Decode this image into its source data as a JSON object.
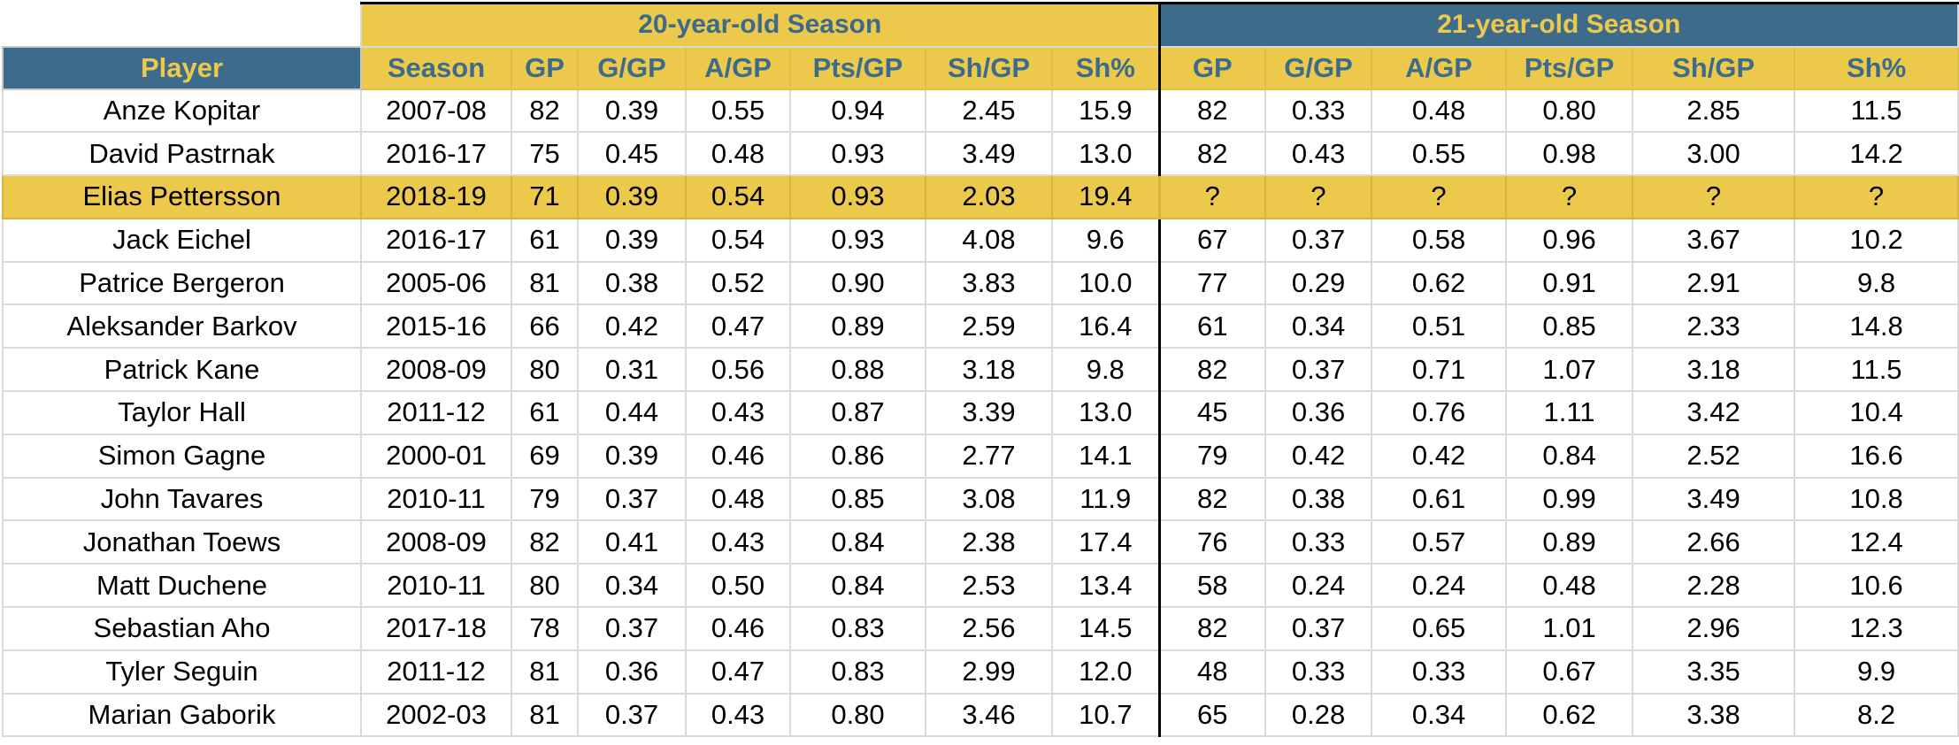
{
  "groups": {
    "season20": "20-year-old Season",
    "season21": "21-year-old Season"
  },
  "headers": {
    "player": "Player",
    "season": "Season",
    "gp20": "GP",
    "g20": "G/GP",
    "a20": "A/GP",
    "pts20": "Pts/GP",
    "sh20": "Sh/GP",
    "shp20": "Sh%",
    "gp21": "GP",
    "g21": "G/GP",
    "a21": "A/GP",
    "pts21": "Pts/GP",
    "sh21": "Sh/GP",
    "shp21": "Sh%"
  },
  "rows": [
    [
      "Anze Kopitar",
      "2007-08",
      "82",
      "0.39",
      "0.55",
      "0.94",
      "2.45",
      "15.9",
      "82",
      "0.33",
      "0.48",
      "0.80",
      "2.85",
      "11.5"
    ],
    [
      "David Pastrnak",
      "2016-17",
      "75",
      "0.45",
      "0.48",
      "0.93",
      "3.49",
      "13.0",
      "82",
      "0.43",
      "0.55",
      "0.98",
      "3.00",
      "14.2"
    ],
    [
      "Elias Pettersson",
      "2018-19",
      "71",
      "0.39",
      "0.54",
      "0.93",
      "2.03",
      "19.4",
      "?",
      "?",
      "?",
      "?",
      "?",
      "?"
    ],
    [
      "Jack Eichel",
      "2016-17",
      "61",
      "0.39",
      "0.54",
      "0.93",
      "4.08",
      "9.6",
      "67",
      "0.37",
      "0.58",
      "0.96",
      "3.67",
      "10.2"
    ],
    [
      "Patrice Bergeron",
      "2005-06",
      "81",
      "0.38",
      "0.52",
      "0.90",
      "3.83",
      "10.0",
      "77",
      "0.29",
      "0.62",
      "0.91",
      "2.91",
      "9.8"
    ],
    [
      "Aleksander Barkov",
      "2015-16",
      "66",
      "0.42",
      "0.47",
      "0.89",
      "2.59",
      "16.4",
      "61",
      "0.34",
      "0.51",
      "0.85",
      "2.33",
      "14.8"
    ],
    [
      "Patrick Kane",
      "2008-09",
      "80",
      "0.31",
      "0.56",
      "0.88",
      "3.18",
      "9.8",
      "82",
      "0.37",
      "0.71",
      "1.07",
      "3.18",
      "11.5"
    ],
    [
      "Taylor Hall",
      "2011-12",
      "61",
      "0.44",
      "0.43",
      "0.87",
      "3.39",
      "13.0",
      "45",
      "0.36",
      "0.76",
      "1.11",
      "3.42",
      "10.4"
    ],
    [
      "Simon Gagne",
      "2000-01",
      "69",
      "0.39",
      "0.46",
      "0.86",
      "2.77",
      "14.1",
      "79",
      "0.42",
      "0.42",
      "0.84",
      "2.52",
      "16.6"
    ],
    [
      "John Tavares",
      "2010-11",
      "79",
      "0.37",
      "0.48",
      "0.85",
      "3.08",
      "11.9",
      "82",
      "0.38",
      "0.61",
      "0.99",
      "3.49",
      "10.8"
    ],
    [
      "Jonathan Toews",
      "2008-09",
      "82",
      "0.41",
      "0.43",
      "0.84",
      "2.38",
      "17.4",
      "76",
      "0.33",
      "0.57",
      "0.89",
      "2.66",
      "12.4"
    ],
    [
      "Matt Duchene",
      "2010-11",
      "80",
      "0.34",
      "0.50",
      "0.84",
      "2.53",
      "13.4",
      "58",
      "0.24",
      "0.24",
      "0.48",
      "2.28",
      "10.6"
    ],
    [
      "Sebastian Aho",
      "2017-18",
      "78",
      "0.37",
      "0.46",
      "0.83",
      "2.56",
      "14.5",
      "82",
      "0.37",
      "0.65",
      "1.01",
      "2.96",
      "12.3"
    ],
    [
      "Tyler Seguin",
      "2011-12",
      "81",
      "0.36",
      "0.47",
      "0.83",
      "2.99",
      "12.0",
      "48",
      "0.33",
      "0.33",
      "0.67",
      "3.35",
      "9.9"
    ],
    [
      "Marian Gaborik",
      "2002-03",
      "81",
      "0.37",
      "0.43",
      "0.80",
      "3.46",
      "10.7",
      "65",
      "0.28",
      "0.34",
      "0.62",
      "3.38",
      "8.2"
    ]
  ],
  "highlight_row": 2
}
